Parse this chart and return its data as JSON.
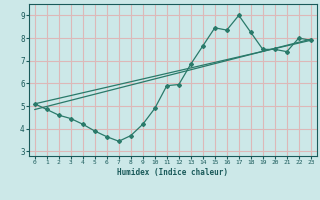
{
  "xlabel": "Humidex (Indice chaleur)",
  "xlim": [
    -0.5,
    23.5
  ],
  "ylim": [
    2.8,
    9.5
  ],
  "yticks": [
    3,
    4,
    5,
    6,
    7,
    8,
    9
  ],
  "xticks": [
    0,
    1,
    2,
    3,
    4,
    5,
    6,
    7,
    8,
    9,
    10,
    11,
    12,
    13,
    14,
    15,
    16,
    17,
    18,
    19,
    20,
    21,
    22,
    23
  ],
  "bg_color": "#cce8e8",
  "grid_color": "#ddb8b8",
  "line_color": "#2a7a6a",
  "line1_x": [
    0,
    1,
    2,
    3,
    4,
    5,
    6,
    7,
    8,
    9,
    10,
    11,
    12,
    13,
    14,
    15,
    16,
    17,
    18,
    19,
    20,
    21,
    22,
    23
  ],
  "line1_y": [
    5.1,
    4.85,
    4.6,
    4.45,
    4.2,
    3.9,
    3.65,
    3.45,
    3.7,
    4.2,
    4.9,
    5.9,
    5.95,
    6.85,
    7.65,
    8.45,
    8.35,
    9.0,
    8.25,
    7.5,
    7.5,
    7.4,
    8.0,
    7.9
  ],
  "line2_x": [
    0,
    23
  ],
  "line2_y": [
    5.1,
    7.9
  ],
  "line3_x": [
    0,
    23
  ],
  "line3_y": [
    4.85,
    7.95
  ]
}
